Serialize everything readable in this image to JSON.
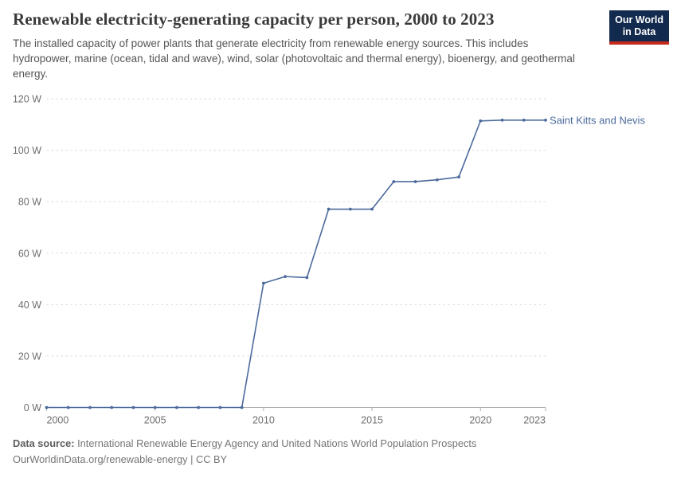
{
  "header": {
    "title": "Renewable electricity-generating capacity per person, 2000 to 2023",
    "subtitle": "The installed capacity of power plants that generate electricity from renewable energy sources. This includes hydropower, marine (ocean, tidal and wave), wind, solar (photovoltaic and thermal energy), bioenergy, and geothermal energy.",
    "logo": {
      "line1": "Our World",
      "line2": "in Data",
      "bg_color": "#122a4e",
      "underline_color": "#c52b1c"
    }
  },
  "chart_data": {
    "type": "line",
    "title": "Renewable electricity-generating capacity per person, 2000 to 2023",
    "unit": "W",
    "x": [
      2000,
      2001,
      2002,
      2003,
      2004,
      2005,
      2006,
      2007,
      2008,
      2009,
      2010,
      2011,
      2012,
      2013,
      2014,
      2015,
      2016,
      2017,
      2018,
      2019,
      2020,
      2021,
      2022,
      2023
    ],
    "series": [
      {
        "name": "Saint Kitts and Nevis",
        "color": "#4c6a9c",
        "values": [
          0,
          0,
          0,
          0,
          0,
          0,
          0,
          0,
          0,
          0,
          48.3,
          50.9,
          50.5,
          77.1,
          77.1,
          77.1,
          87.8,
          87.8,
          88.5,
          89.6,
          111.4,
          111.7,
          111.7,
          111.7
        ]
      }
    ],
    "xlim": [
      2000,
      2023
    ],
    "ylim": [
      0,
      120
    ],
    "yticks": [
      0,
      20,
      40,
      60,
      80,
      100,
      120
    ],
    "ytick_labels": [
      "0 W",
      "20 W",
      "40 W",
      "60 W",
      "80 W",
      "100 W",
      "120 W"
    ],
    "xticks": [
      2000,
      2005,
      2010,
      2015,
      2020,
      2023
    ],
    "xtick_labels": [
      "2000",
      "2005",
      "2010",
      "2015",
      "2020",
      "2023"
    ],
    "grid": "horizontal-dashed",
    "grid_color": "#dadada",
    "axis_color": "#b0b0b0",
    "legend_position": "end-of-line-label"
  },
  "footer": {
    "source_label": "Data source:",
    "source_text": " International Renewable Energy Agency and United Nations World Population Prospects",
    "credit_line": "OurWorldinData.org/renewable-energy | CC BY"
  }
}
